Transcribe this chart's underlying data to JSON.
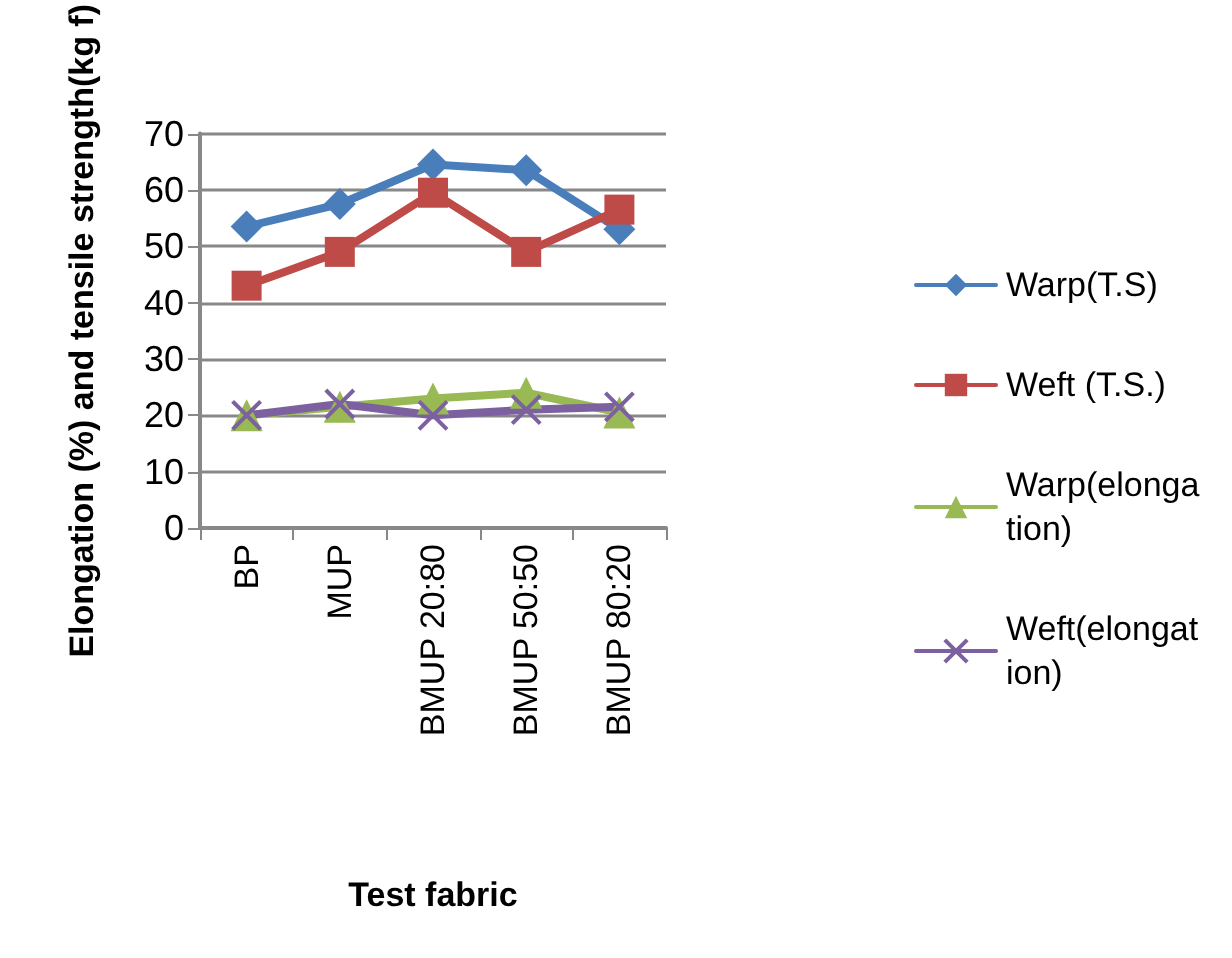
{
  "chart_data": {
    "type": "line",
    "xlabel": "Test fabric",
    "ylabel": "Elongation (%) and tensile strength(kg f)",
    "categories": [
      "BP",
      "MUP",
      "BMUP 20:80",
      "BMUP 50:50",
      "BMUP 80:20"
    ],
    "series": [
      {
        "name": "Warp(T.S)",
        "color": "#4a7ebb",
        "marker": "diamond",
        "values": [
          53.5,
          57.5,
          64.5,
          63.5,
          53
        ]
      },
      {
        "name": "Weft (T.S.)",
        "color": "#be4b48",
        "marker": "square",
        "values": [
          43,
          49,
          59.5,
          49,
          56.5
        ]
      },
      {
        "name": "Warp(elongation)",
        "color": "#98b954",
        "marker": "triangle",
        "values": [
          20,
          21.5,
          23,
          24,
          20.5
        ]
      },
      {
        "name": "Weft(elongation)",
        "color": "#7d60a0",
        "marker": "cross",
        "values": [
          20,
          22,
          20,
          21,
          21.5
        ]
      }
    ],
    "ylim": [
      0,
      70
    ],
    "yticks": [
      0,
      10,
      20,
      30,
      40,
      50,
      60,
      70
    ],
    "grid": "y",
    "legend": "right",
    "line_style": "solid"
  }
}
